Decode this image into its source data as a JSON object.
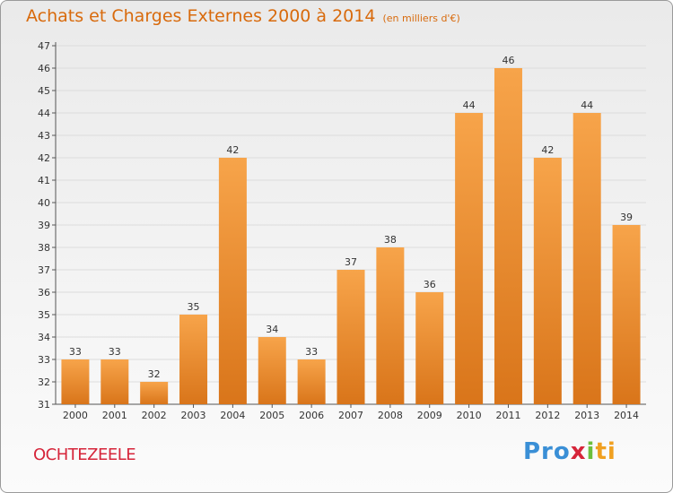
{
  "header": {
    "title": "Achats et Charges Externes 2000 à 2014",
    "unit": "(en milliers d'€)"
  },
  "footer": {
    "place": "OCHTEZEELE",
    "logo_parts": [
      "Pro",
      "x",
      "i",
      "ti"
    ]
  },
  "colors": {
    "bar_light": "#f7a44a",
    "bar_dark": "#d9751a",
    "title": "#d86a0c",
    "place": "#d6253a"
  },
  "chart_data": {
    "type": "bar",
    "title": "Achats et Charges Externes 2000 à 2014",
    "subtitle": "(en milliers d'€)",
    "categories": [
      "2000",
      "2001",
      "2002",
      "2003",
      "2004",
      "2005",
      "2006",
      "2007",
      "2008",
      "2009",
      "2010",
      "2011",
      "2012",
      "2013",
      "2014"
    ],
    "values": [
      33,
      33,
      32,
      35,
      42,
      34,
      33,
      37,
      38,
      36,
      44,
      46,
      42,
      44,
      39
    ],
    "ylim": [
      31,
      47
    ],
    "yticks": [
      31,
      32,
      33,
      34,
      35,
      36,
      37,
      38,
      39,
      40,
      41,
      42,
      43,
      44,
      45,
      46,
      47
    ],
    "grid": true,
    "data_labels": true
  }
}
